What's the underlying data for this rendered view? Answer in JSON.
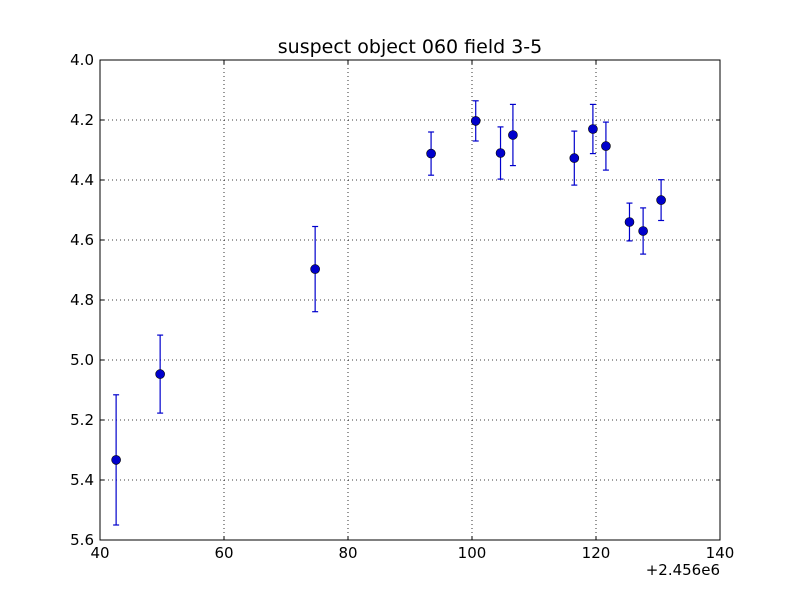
{
  "chart_data": {
    "type": "scatter",
    "title": "suspect object 060 field 3-5",
    "xlabel": "",
    "ylabel": "",
    "x_offset_label": "+2.456e6",
    "xlim": [
      40,
      140
    ],
    "ylim": [
      5.6,
      4.0
    ],
    "y_inverted": true,
    "grid": true,
    "x_ticks": [
      40,
      60,
      80,
      100,
      120,
      140
    ],
    "x_tick_labels": [
      "40",
      "60",
      "80",
      "100",
      "120",
      "140"
    ],
    "y_ticks": [
      4.0,
      4.2,
      4.4,
      4.6,
      4.8,
      5.0,
      5.2,
      5.4,
      5.6
    ],
    "y_tick_labels": [
      "4.0",
      "4.2",
      "4.4",
      "4.6",
      "4.8",
      "5.0",
      "5.2",
      "5.4",
      "5.6"
    ],
    "marker_color": "#0000cc",
    "series": [
      {
        "points": [
          {
            "x": 42.6,
            "y": 5.333,
            "yerr": 0.217
          },
          {
            "x": 49.7,
            "y": 5.047,
            "yerr": 0.13
          },
          {
            "x": 74.7,
            "y": 4.697,
            "yerr": 0.142
          },
          {
            "x": 93.4,
            "y": 4.312,
            "yerr": 0.072
          },
          {
            "x": 100.6,
            "y": 4.203,
            "yerr": 0.067
          },
          {
            "x": 104.6,
            "y": 4.31,
            "yerr": 0.087
          },
          {
            "x": 106.6,
            "y": 4.25,
            "yerr": 0.102
          },
          {
            "x": 116.5,
            "y": 4.327,
            "yerr": 0.09
          },
          {
            "x": 119.5,
            "y": 4.23,
            "yerr": 0.082
          },
          {
            "x": 121.6,
            "y": 4.287,
            "yerr": 0.08
          },
          {
            "x": 125.4,
            "y": 4.54,
            "yerr": 0.063
          },
          {
            "x": 127.6,
            "y": 4.57,
            "yerr": 0.077
          },
          {
            "x": 130.5,
            "y": 4.467,
            "yerr": 0.068
          }
        ]
      }
    ]
  }
}
